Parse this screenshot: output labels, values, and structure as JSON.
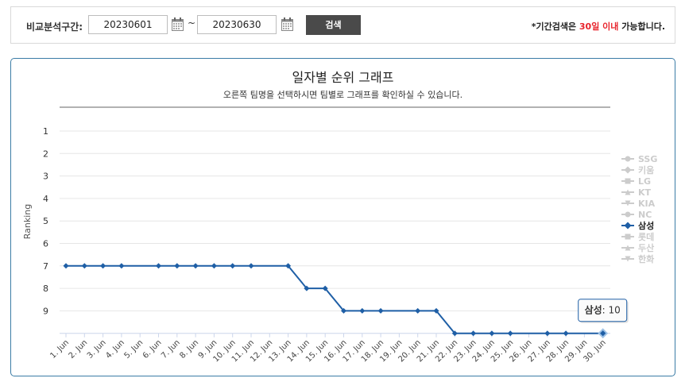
{
  "search": {
    "label": "비교분석구간:",
    "start_date": "20230601",
    "end_date": "20230630",
    "tilde": "~",
    "button": "검색",
    "notice_prefix": "*기간검색은 ",
    "notice_highlight": "30일 이내",
    "notice_suffix": " 가능합니다."
  },
  "chart_data": {
    "type": "line",
    "title": "일자별 순위 그래프",
    "subtitle": "오른쪽 팀명을 선택하시면 팀별로 그래프를 확인하실 수 있습니다.",
    "ylabel": "Ranking",
    "xlabel": "",
    "ylim": [
      1,
      10
    ],
    "y_reversed": true,
    "y_ticks": [
      "1",
      "2",
      "3",
      "4",
      "5",
      "6",
      "7",
      "8",
      "9"
    ],
    "categories": [
      "1. Jun",
      "2. Jun",
      "3. Jun",
      "4. Jun",
      "5. Jun",
      "6. Jun",
      "7. Jun",
      "8. Jun",
      "9. Jun",
      "10. Jun",
      "11. Jun",
      "12. Jun",
      "13. Jun",
      "14. Jun",
      "15. Jun",
      "16. Jun",
      "17. Jun",
      "18. Jun",
      "19. Jun",
      "20. Jun",
      "21. Jun",
      "22. Jun",
      "23. Jun",
      "24. Jun",
      "25. Jun",
      "26. Jun",
      "27. Jun",
      "28. Jun",
      "29. Jun",
      "30. Jun"
    ],
    "series": [
      {
        "name": "삼성",
        "color": "#1f5fa6",
        "visible": true,
        "values": [
          7,
          7,
          7,
          7,
          null,
          7,
          7,
          7,
          7,
          7,
          7,
          null,
          7,
          8,
          8,
          9,
          9,
          9,
          null,
          9,
          9,
          10,
          10,
          10,
          10,
          null,
          10,
          10,
          null,
          10
        ]
      }
    ],
    "legend": [
      {
        "name": "SSG",
        "marker": "circle",
        "active": false
      },
      {
        "name": "키움",
        "marker": "diamond",
        "active": false
      },
      {
        "name": "LG",
        "marker": "square",
        "active": false
      },
      {
        "name": "KT",
        "marker": "triangle",
        "active": false
      },
      {
        "name": "KIA",
        "marker": "triangle-down",
        "active": false
      },
      {
        "name": "NC",
        "marker": "circle",
        "active": false
      },
      {
        "name": "삼성",
        "marker": "diamond",
        "active": true
      },
      {
        "name": "롯데",
        "marker": "square",
        "active": false
      },
      {
        "name": "두산",
        "marker": "triangle",
        "active": false
      },
      {
        "name": "한화",
        "marker": "triangle-down",
        "active": false
      }
    ],
    "legend_position": "right",
    "tooltip": {
      "series": "삼성",
      "category": "30. Jun",
      "label": "삼성",
      "value": "10"
    },
    "grid": true
  }
}
